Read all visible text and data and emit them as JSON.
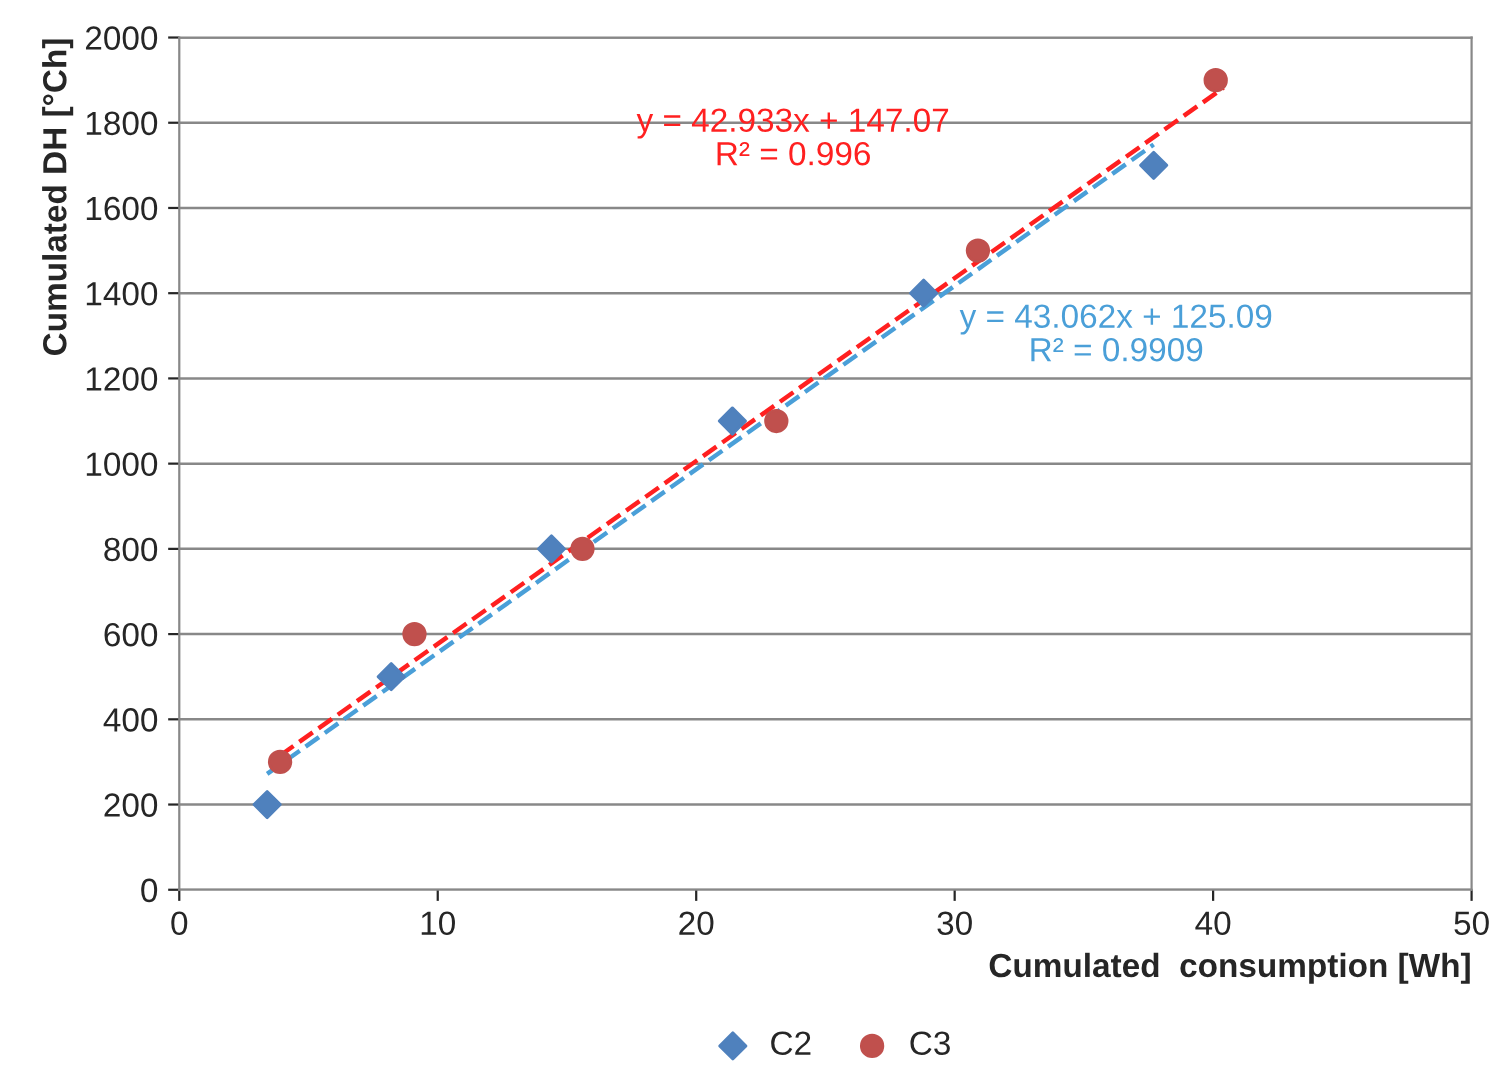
{
  "chart_data": {
    "type": "scatter",
    "xlabel": "Cumulated  consumption [Wh]",
    "ylabel": "Cumulated DH [°Ch]",
    "xlim": [
      0,
      50
    ],
    "xticks": [
      0,
      10,
      20,
      30,
      40,
      50
    ],
    "ylim": [
      0,
      2000
    ],
    "yticks": [
      0,
      200,
      400,
      600,
      800,
      1000,
      1200,
      1400,
      1600,
      1800,
      2000
    ],
    "grid": "y",
    "legend": "bottom",
    "series": [
      {
        "name": "C2",
        "marker": "diamond",
        "color": "#4f81bd",
        "x": [
          3.4,
          8.2,
          14.4,
          21.4,
          28.8,
          37.7
        ],
        "values": [
          200,
          500,
          800,
          1100,
          1400,
          1700
        ]
      },
      {
        "name": "C3",
        "marker": "circle",
        "color": "#c0504d",
        "x": [
          3.9,
          9.1,
          15.6,
          23.1,
          30.9,
          40.1
        ],
        "values": [
          300,
          600,
          800,
          1100,
          1500,
          1900
        ]
      },
      {
        "type": "line",
        "line_style": "dashed",
        "color": "#4a9fd8",
        "x": [
          3.4,
          37.7
        ],
        "values": [
          272,
          1749
        ]
      },
      {
        "type": "line",
        "line_style": "dashed",
        "color": "#ff2020",
        "x": [
          3.9,
          40.4
        ],
        "values": [
          315,
          1882
        ]
      }
    ],
    "annotations": [
      "y = 43.062x + 125.09\nR² = 0.9909",
      "y = 42.933x + 147.07\nR² = 0.996"
    ]
  }
}
